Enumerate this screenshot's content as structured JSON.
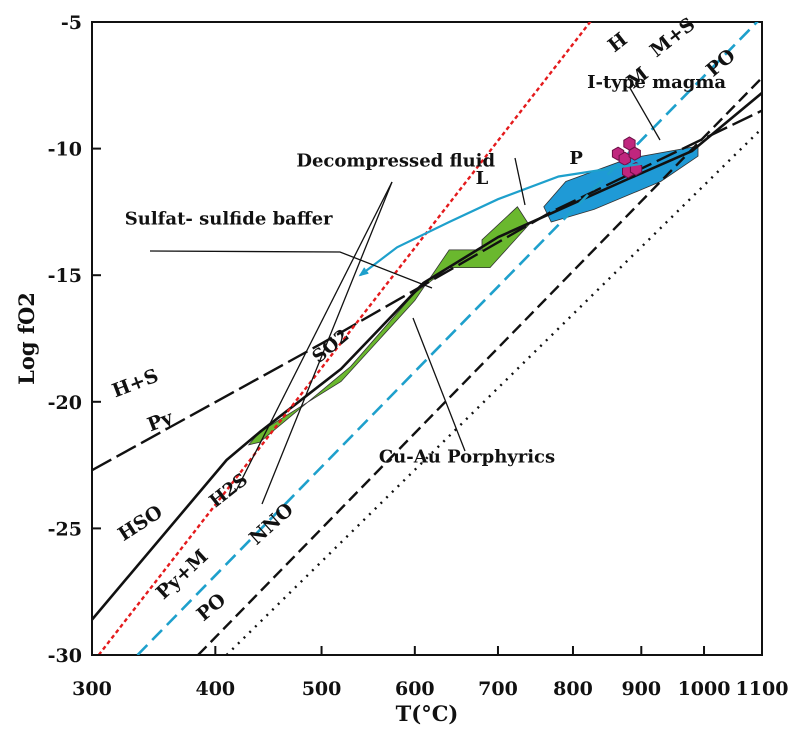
{
  "chart_data": {
    "type": "line",
    "xlabel": "T(°C)",
    "ylabel": "Log fO2",
    "xlim": [
      300,
      1100
    ],
    "ylim": [
      -30,
      -5
    ],
    "x_ticks": [
      300,
      400,
      500,
      600,
      700,
      800,
      900,
      1000,
      1100
    ],
    "y_ticks": [
      -5,
      -10,
      -15,
      -20,
      -25,
      -30
    ],
    "grid": false,
    "legend": "none",
    "buffer_lines": [
      {
        "label": "H+S / Py",
        "style": "longdash",
        "color": "#111111",
        "points": [
          [
            300,
            -22.7
          ],
          [
            500,
            -17.7
          ],
          [
            770,
            -12.5
          ],
          [
            1100,
            -8.5
          ]
        ],
        "labels": [
          {
            "text": "H+S",
            "x": 335,
            "y": -19.5
          },
          {
            "text": "Py",
            "x": 355,
            "y": -21.0
          }
        ]
      },
      {
        "label": "HSO",
        "style": "solid",
        "color": "#111111",
        "points": [
          [
            300,
            -28.6
          ],
          [
            410,
            -22.3
          ],
          [
            440,
            -21.2
          ],
          [
            520,
            -18.7
          ],
          [
            610,
            -15.3
          ],
          [
            700,
            -13.5
          ],
          [
            790,
            -12.3
          ],
          [
            880,
            -11.2
          ],
          [
            980,
            -10.1
          ],
          [
            1100,
            -7.8
          ]
        ],
        "labels": [
          {
            "text": "HSO",
            "x": 340,
            "y": -25.0
          }
        ]
      },
      {
        "label": "H / M",
        "style": "dotted-red",
        "color": "#e41a1c",
        "points": [
          [
            305,
            -30
          ],
          [
            830,
            -4.8
          ]
        ],
        "labels": [
          {
            "text": "H",
            "x": 870,
            "y": -6.0
          },
          {
            "text": "M",
            "x": 900,
            "y": -7.4
          }
        ]
      },
      {
        "label": "M+S / Py+M",
        "style": "dashed-cyan",
        "color": "#1ea0cc",
        "points": [
          [
            335,
            -30
          ],
          [
            1100,
            -4.8
          ]
        ],
        "labels": [
          {
            "text": "M+S",
            "x": 955,
            "y": -5.8
          },
          {
            "text": "Py+M",
            "x": 375,
            "y": -27.0
          }
        ]
      },
      {
        "label": "NNO / PO",
        "style": "dashed",
        "color": "#111111",
        "points": [
          [
            385,
            -30
          ],
          [
            1100,
            -7.2
          ]
        ],
        "labels": [
          {
            "text": "PO",
            "x": 1035,
            "y": -6.8
          },
          {
            "text": "NNO",
            "x": 455,
            "y": -25.0
          },
          {
            "text": "PO",
            "x": 400,
            "y": -28.3
          }
        ]
      },
      {
        "label": "dotted",
        "style": "dotted",
        "color": "#111111",
        "points": [
          [
            410,
            -30
          ],
          [
            1100,
            -9.2
          ]
        ],
        "labels": []
      }
    ],
    "regions": [
      {
        "label": "Cu-Au Porphyrics",
        "color": "#6ab82e",
        "points": [
          [
            430,
            -21.7
          ],
          [
            440,
            -21.2
          ],
          [
            520,
            -19.2
          ],
          [
            600,
            -16.0
          ],
          [
            640,
            -14.0
          ],
          [
            680,
            -14.0
          ],
          [
            680,
            -13.6
          ],
          [
            725,
            -12.3
          ],
          [
            740,
            -13.0
          ],
          [
            690,
            -14.7
          ],
          [
            640,
            -14.7
          ],
          [
            600,
            -15.7
          ],
          [
            530,
            -18.6
          ],
          [
            440,
            -21.6
          ]
        ]
      },
      {
        "label": "I-type magma field",
        "color": "#1f9ad6",
        "points": [
          [
            760,
            -12.3
          ],
          [
            790,
            -11.3
          ],
          [
            880,
            -10.4
          ],
          [
            990,
            -9.9
          ],
          [
            990,
            -10.3
          ],
          [
            930,
            -11.3
          ],
          [
            830,
            -12.4
          ],
          [
            770,
            -12.9
          ]
        ]
      },
      {
        "label": "I-type magma symbols",
        "color": "#c0267e",
        "points": [
          [
            865,
            -10.2
          ],
          [
            875,
            -10.4
          ],
          [
            882,
            -9.8
          ],
          [
            890,
            -10.2
          ],
          [
            880,
            -10.9
          ],
          [
            892,
            -10.8
          ]
        ]
      }
    ],
    "decompression_path": [
      [
        900,
        -10.6
      ],
      [
        780,
        -11.1
      ],
      [
        700,
        -12.0
      ],
      [
        640,
        -12.9
      ],
      [
        580,
        -13.9
      ],
      [
        540,
        -15.0
      ]
    ],
    "annotations": [
      {
        "text": "I-type magma",
        "x": 820,
        "y": -7.6
      },
      {
        "text": "Decompressed fluid",
        "x": 475,
        "y": -10.7
      },
      {
        "text": "Sulfat- sulfide baffer",
        "x": 325,
        "y": -13.0
      },
      {
        "text": "Cu-Au Porphyrics",
        "x": 560,
        "y": -22.4
      },
      {
        "text": "L",
        "x": 672,
        "y": -11.4
      },
      {
        "text": "P",
        "x": 795,
        "y": -10.6
      },
      {
        "text": "SO2",
        "x": 497,
        "y": -18.5
      },
      {
        "text": "H2S",
        "x": 400,
        "y": -24.2
      }
    ]
  }
}
